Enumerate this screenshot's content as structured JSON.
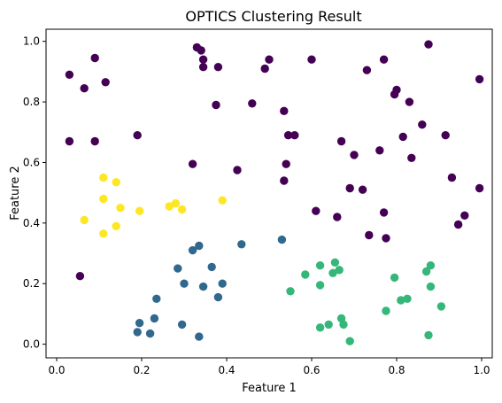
{
  "chart_data": {
    "type": "scatter",
    "title": "OPTICS Clustering Result",
    "xlabel": "Feature 1",
    "ylabel": "Feature 2",
    "xlim": [
      -0.025,
      1.025
    ],
    "ylim": [
      -0.045,
      1.04
    ],
    "xticks": [
      "0.0",
      "0.2",
      "0.4",
      "0.6",
      "0.8",
      "1.0"
    ],
    "yticks": [
      "0.0",
      "0.2",
      "0.4",
      "0.6",
      "0.8",
      "1.0"
    ],
    "grid": false,
    "legend": "none",
    "series": [
      {
        "color": "#440154",
        "points": [
          [
            0.03,
            0.89
          ],
          [
            0.09,
            0.945
          ],
          [
            0.065,
            0.845
          ],
          [
            0.115,
            0.865
          ],
          [
            0.03,
            0.67
          ],
          [
            0.09,
            0.67
          ],
          [
            0.19,
            0.69
          ],
          [
            0.33,
            0.98
          ],
          [
            0.34,
            0.97
          ],
          [
            0.345,
            0.94
          ],
          [
            0.345,
            0.915
          ],
          [
            0.38,
            0.915
          ],
          [
            0.375,
            0.79
          ],
          [
            0.46,
            0.795
          ],
          [
            0.49,
            0.91
          ],
          [
            0.5,
            0.94
          ],
          [
            0.6,
            0.94
          ],
          [
            0.535,
            0.77
          ],
          [
            0.545,
            0.69
          ],
          [
            0.56,
            0.69
          ],
          [
            0.32,
            0.595
          ],
          [
            0.425,
            0.575
          ],
          [
            0.54,
            0.595
          ],
          [
            0.535,
            0.54
          ],
          [
            0.61,
            0.44
          ],
          [
            0.66,
            0.42
          ],
          [
            0.67,
            0.67
          ],
          [
            0.7,
            0.625
          ],
          [
            0.69,
            0.515
          ],
          [
            0.72,
            0.51
          ],
          [
            0.73,
            0.905
          ],
          [
            0.77,
            0.94
          ],
          [
            0.795,
            0.825
          ],
          [
            0.8,
            0.84
          ],
          [
            0.83,
            0.8
          ],
          [
            0.875,
            0.99
          ],
          [
            0.86,
            0.725
          ],
          [
            0.815,
            0.685
          ],
          [
            0.76,
            0.64
          ],
          [
            0.835,
            0.615
          ],
          [
            0.915,
            0.69
          ],
          [
            0.995,
            0.875
          ],
          [
            0.93,
            0.55
          ],
          [
            0.995,
            0.515
          ],
          [
            0.77,
            0.435
          ],
          [
            0.775,
            0.35
          ],
          [
            0.735,
            0.36
          ],
          [
            0.96,
            0.425
          ],
          [
            0.945,
            0.395
          ],
          [
            0.055,
            0.225
          ]
        ]
      },
      {
        "color": "#31688e",
        "points": [
          [
            0.32,
            0.31
          ],
          [
            0.335,
            0.325
          ],
          [
            0.285,
            0.25
          ],
          [
            0.365,
            0.255
          ],
          [
            0.3,
            0.2
          ],
          [
            0.345,
            0.19
          ],
          [
            0.39,
            0.2
          ],
          [
            0.38,
            0.155
          ],
          [
            0.235,
            0.15
          ],
          [
            0.435,
            0.33
          ],
          [
            0.53,
            0.345
          ],
          [
            0.195,
            0.07
          ],
          [
            0.23,
            0.085
          ],
          [
            0.19,
            0.04
          ],
          [
            0.22,
            0.035
          ],
          [
            0.295,
            0.065
          ],
          [
            0.335,
            0.025
          ]
        ]
      },
      {
        "color": "#35b779",
        "points": [
          [
            0.62,
            0.26
          ],
          [
            0.655,
            0.27
          ],
          [
            0.585,
            0.23
          ],
          [
            0.65,
            0.235
          ],
          [
            0.62,
            0.195
          ],
          [
            0.55,
            0.175
          ],
          [
            0.665,
            0.245
          ],
          [
            0.64,
            0.065
          ],
          [
            0.62,
            0.055
          ],
          [
            0.67,
            0.085
          ],
          [
            0.675,
            0.065
          ],
          [
            0.69,
            0.01
          ],
          [
            0.795,
            0.22
          ],
          [
            0.87,
            0.24
          ],
          [
            0.88,
            0.26
          ],
          [
            0.88,
            0.19
          ],
          [
            0.775,
            0.11
          ],
          [
            0.81,
            0.145
          ],
          [
            0.825,
            0.15
          ],
          [
            0.905,
            0.125
          ],
          [
            0.875,
            0.03
          ]
        ]
      },
      {
        "color": "#fde725",
        "points": [
          [
            0.11,
            0.55
          ],
          [
            0.14,
            0.535
          ],
          [
            0.11,
            0.48
          ],
          [
            0.15,
            0.45
          ],
          [
            0.065,
            0.41
          ],
          [
            0.14,
            0.39
          ],
          [
            0.11,
            0.365
          ],
          [
            0.195,
            0.44
          ],
          [
            0.265,
            0.455
          ],
          [
            0.28,
            0.465
          ],
          [
            0.295,
            0.445
          ],
          [
            0.39,
            0.475
          ]
        ]
      }
    ]
  }
}
